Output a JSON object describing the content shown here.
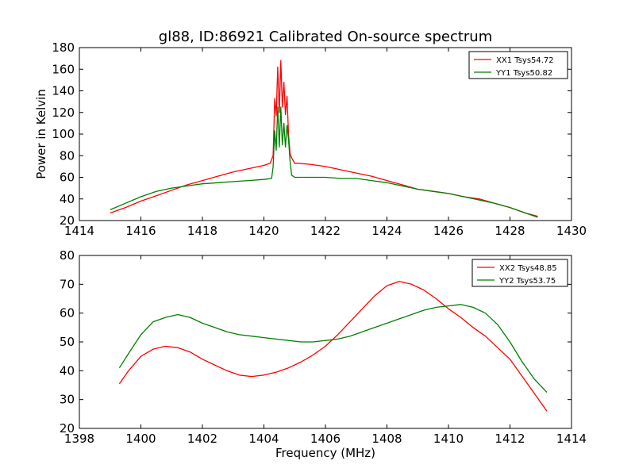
{
  "chart_data": [
    {
      "type": "line",
      "title": "gl88, ID:86921 Calibrated On-source spectrum",
      "xlabel": "",
      "ylabel": "Power in Kelvin",
      "xlim": [
        1414,
        1430
      ],
      "ylim": [
        20,
        180
      ],
      "xticks": [
        "1414",
        "1416",
        "1418",
        "1420",
        "1422",
        "1424",
        "1426",
        "1428",
        "1430"
      ],
      "yticks": [
        "20",
        "40",
        "60",
        "80",
        "100",
        "120",
        "140",
        "160",
        "180"
      ],
      "legend_position": "top-right",
      "grid": false,
      "series": [
        {
          "name": "XX1 Tsys54.72",
          "color": "#ff0000",
          "x": [
            1415.0,
            1415.5,
            1416.0,
            1416.5,
            1417.0,
            1417.5,
            1418.0,
            1418.5,
            1419.0,
            1419.5,
            1420.0,
            1420.2,
            1420.3,
            1420.35,
            1420.4,
            1420.45,
            1420.5,
            1420.55,
            1420.6,
            1420.65,
            1420.7,
            1420.75,
            1420.8,
            1420.85,
            1420.9,
            1421.0,
            1421.1,
            1421.5,
            1422.0,
            1422.5,
            1423.0,
            1423.5,
            1424.0,
            1424.5,
            1425.0,
            1425.5,
            1426.0,
            1426.5,
            1427.0,
            1427.5,
            1428.0,
            1428.5,
            1428.9
          ],
          "y": [
            27,
            32,
            38,
            43,
            48,
            53,
            57,
            61,
            65,
            68,
            71,
            73,
            80,
            133,
            117,
            162,
            120,
            168,
            125,
            148,
            118,
            135,
            100,
            82,
            78,
            73,
            73,
            72,
            70,
            67,
            64,
            61,
            57,
            53,
            49,
            47,
            45,
            42,
            40,
            36,
            32,
            27,
            24
          ]
        },
        {
          "name": "YY1 Tsys50.82",
          "color": "#008000",
          "x": [
            1415.0,
            1415.5,
            1416.0,
            1416.5,
            1417.0,
            1417.5,
            1418.0,
            1418.5,
            1419.0,
            1419.5,
            1420.0,
            1420.25,
            1420.3,
            1420.35,
            1420.4,
            1420.45,
            1420.5,
            1420.55,
            1420.6,
            1420.65,
            1420.7,
            1420.75,
            1420.8,
            1420.85,
            1420.9,
            1421.0,
            1421.5,
            1422.0,
            1422.5,
            1423.0,
            1423.5,
            1424.0,
            1424.5,
            1425.0,
            1425.5,
            1426.0,
            1426.5,
            1427.0,
            1427.5,
            1428.0,
            1428.5,
            1428.9
          ],
          "y": [
            30,
            36,
            42,
            47,
            50,
            52,
            54,
            55,
            56,
            57,
            58,
            59,
            70,
            103,
            85,
            125,
            88,
            125,
            90,
            110,
            88,
            108,
            95,
            75,
            62,
            60,
            60,
            60,
            59,
            59,
            57,
            55,
            52,
            49,
            47,
            45,
            42,
            39,
            36,
            32,
            27,
            23
          ]
        }
      ]
    },
    {
      "type": "line",
      "title": "",
      "xlabel": "Frequency (MHz)",
      "ylabel": "",
      "xlim": [
        1398,
        1414
      ],
      "ylim": [
        20,
        80
      ],
      "xticks": [
        "1398",
        "1400",
        "1402",
        "1404",
        "1406",
        "1408",
        "1410",
        "1412",
        "1414"
      ],
      "yticks": [
        "20",
        "30",
        "40",
        "50",
        "60",
        "70",
        "80"
      ],
      "legend_position": "top-right",
      "grid": false,
      "series": [
        {
          "name": "XX2 Tsys48.85",
          "color": "#ff0000",
          "x": [
            1399.3,
            1399.6,
            1400.0,
            1400.4,
            1400.8,
            1401.2,
            1401.6,
            1402.0,
            1402.4,
            1402.8,
            1403.2,
            1403.6,
            1404.0,
            1404.4,
            1404.8,
            1405.2,
            1405.6,
            1406.0,
            1406.4,
            1406.8,
            1407.2,
            1407.6,
            1408.0,
            1408.4,
            1408.8,
            1409.2,
            1409.6,
            1410.0,
            1410.4,
            1410.8,
            1411.2,
            1411.6,
            1412.0,
            1412.4,
            1412.8,
            1413.2
          ],
          "y": [
            35.5,
            40,
            45,
            47.5,
            48.5,
            48,
            46.5,
            44,
            42,
            40,
            38.5,
            38,
            38.5,
            39.5,
            41,
            43,
            45.5,
            48.5,
            52.5,
            57,
            61.5,
            66,
            69.5,
            71,
            70,
            68,
            65,
            61.5,
            58.5,
            55,
            52,
            48,
            44,
            38,
            32,
            26
          ]
        },
        {
          "name": "YY2 Tsys53.75",
          "color": "#008000",
          "x": [
            1399.3,
            1399.6,
            1400.0,
            1400.4,
            1400.8,
            1401.2,
            1401.6,
            1402.0,
            1402.4,
            1402.8,
            1403.2,
            1403.6,
            1404.0,
            1404.4,
            1404.8,
            1405.2,
            1405.6,
            1406.0,
            1406.4,
            1406.8,
            1407.2,
            1407.6,
            1408.0,
            1408.4,
            1408.8,
            1409.2,
            1409.6,
            1410.0,
            1410.4,
            1410.8,
            1411.2,
            1411.6,
            1412.0,
            1412.4,
            1412.8,
            1413.2
          ],
          "y": [
            41,
            46,
            52.5,
            57,
            58.5,
            59.5,
            58.5,
            56.5,
            55,
            53.5,
            52.5,
            52,
            51.5,
            51,
            50.5,
            50,
            50,
            50.5,
            51,
            52,
            53.5,
            55,
            56.5,
            58,
            59.5,
            61,
            62,
            62.5,
            63,
            62,
            60,
            56,
            50,
            43,
            37,
            32.5
          ]
        }
      ]
    }
  ]
}
